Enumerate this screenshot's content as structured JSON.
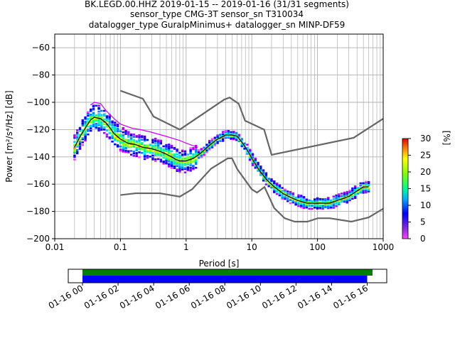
{
  "title": {
    "line1": "BK.LEGD.00.HHZ   2019-01-15 -- 2019-01-16  (31/31 segments)",
    "line2": "sensor_type CMG-3T sensor_sn T310034",
    "line3": "datalogger_type GuralpMinimus+ datalogger_sn MINP-DF59"
  },
  "chart_data": [
    {
      "type": "heatmap",
      "xlabel": "Period [s]",
      "ylabel": "Power [m²/s⁴/Hz] [dB]",
      "xscale": "log",
      "xlim": [
        0.01,
        1000
      ],
      "ylim": [
        -200,
        -50
      ],
      "x_ticks": [
        {
          "value": 0.01,
          "label": "0.01"
        },
        {
          "value": 0.1,
          "label": "0.1"
        },
        {
          "value": 1,
          "label": "1"
        },
        {
          "value": 10,
          "label": "10"
        },
        {
          "value": 100,
          "label": "100"
        },
        {
          "value": 1000,
          "label": "1000"
        }
      ],
      "y_ticks": [
        {
          "value": -60,
          "label": "−60"
        },
        {
          "value": -80,
          "label": "−80"
        },
        {
          "value": -100,
          "label": "−100"
        },
        {
          "value": -120,
          "label": "−120"
        },
        {
          "value": -140,
          "label": "−140"
        },
        {
          "value": -160,
          "label": "−160"
        },
        {
          "value": -180,
          "label": "−180"
        },
        {
          "value": -200,
          "label": "−200"
        }
      ],
      "grid": true,
      "noise_models": {
        "color": "#666666",
        "high": {
          "x": [
            0.1,
            0.22,
            0.32,
            0.8,
            3.8,
            4.6,
            6.3,
            7.9,
            15.4,
            20,
            354.8,
            1000
          ],
          "y": [
            -91.5,
            -97.4,
            -110.5,
            -120,
            -98,
            -96.5,
            -101,
            -113.5,
            -120,
            -138.5,
            -126,
            -112
          ]
        },
        "low": {
          "x": [
            0.1,
            0.17,
            0.4,
            0.8,
            1.24,
            2.4,
            4.3,
            5,
            6,
            10,
            12,
            15.6,
            21.9,
            31.6,
            45,
            70,
            101,
            154,
            328,
            600,
            1000
          ],
          "y": [
            -168,
            -166.7,
            -166.7,
            -169.2,
            -163.7,
            -148.6,
            -141.1,
            -141.1,
            -149,
            -163.8,
            -166.2,
            -162.1,
            -177.5,
            -185,
            -187.5,
            -187.5,
            -185,
            -185,
            -187.5,
            -184.4,
            -178
          ]
        }
      },
      "series": [
        {
          "name": "",
          "color": "#111111",
          "x": [
            0.02,
            0.025,
            0.03,
            0.035,
            0.04,
            0.05,
            0.06,
            0.07,
            0.08,
            0.1,
            0.13,
            0.17,
            0.22,
            0.3,
            0.4,
            0.5,
            0.6,
            0.7,
            0.8,
            1,
            1.3,
            1.7,
            2.2,
            3,
            4,
            5,
            6,
            7,
            8,
            9,
            10,
            13,
            17,
            22,
            30,
            40,
            50,
            70,
            100,
            150,
            200,
            300,
            400,
            500,
            600
          ],
          "y": [
            -133,
            -124,
            -118,
            -113,
            -111,
            -112,
            -115,
            -119,
            -123,
            -127,
            -130,
            -131,
            -133,
            -134,
            -136,
            -138,
            -140,
            -142,
            -143,
            -143,
            -141,
            -137,
            -132,
            -127,
            -124,
            -124,
            -125,
            -129,
            -133,
            -137,
            -141,
            -150,
            -157,
            -162,
            -167,
            -170,
            -172,
            -174,
            -174,
            -174,
            -172,
            -169,
            -165,
            -162,
            -162
          ]
        },
        {
          "name": "",
          "color": "#cc00ff",
          "x": [
            0.035,
            0.04,
            0.05,
            0.06,
            0.08,
            0.1,
            0.15,
            0.2,
            0.3,
            0.5,
            0.8,
            1,
            1.5
          ],
          "y": [
            -102,
            -100,
            -101,
            -106,
            -112,
            -116,
            -119,
            -120,
            -122,
            -125,
            -128,
            -130,
            -133
          ]
        }
      ],
      "colorbar": {
        "label": "[%]",
        "min": 0,
        "max": 30,
        "ticks": [
          0,
          5,
          10,
          15,
          20,
          25,
          30
        ]
      }
    },
    {
      "type": "bar",
      "xlabel": "",
      "ticks": [
        "01-16 00",
        "01-16 02",
        "01-16 04",
        "01-16 06",
        "01-16 08",
        "01-16 10",
        "01-16 12",
        "01-16 14",
        "01-16 16"
      ],
      "tick_hours": [
        0,
        2,
        4,
        6,
        8,
        10,
        12,
        14,
        16
      ],
      "xlim_hours": [
        -0.8,
        17.1
      ],
      "series": [
        {
          "name": "",
          "color": "#008000",
          "start_hour": 0,
          "end_hour": 16.3
        },
        {
          "name": "",
          "color": "#0000ff",
          "start_hour": 0,
          "end_hour": 16.0
        }
      ]
    }
  ]
}
